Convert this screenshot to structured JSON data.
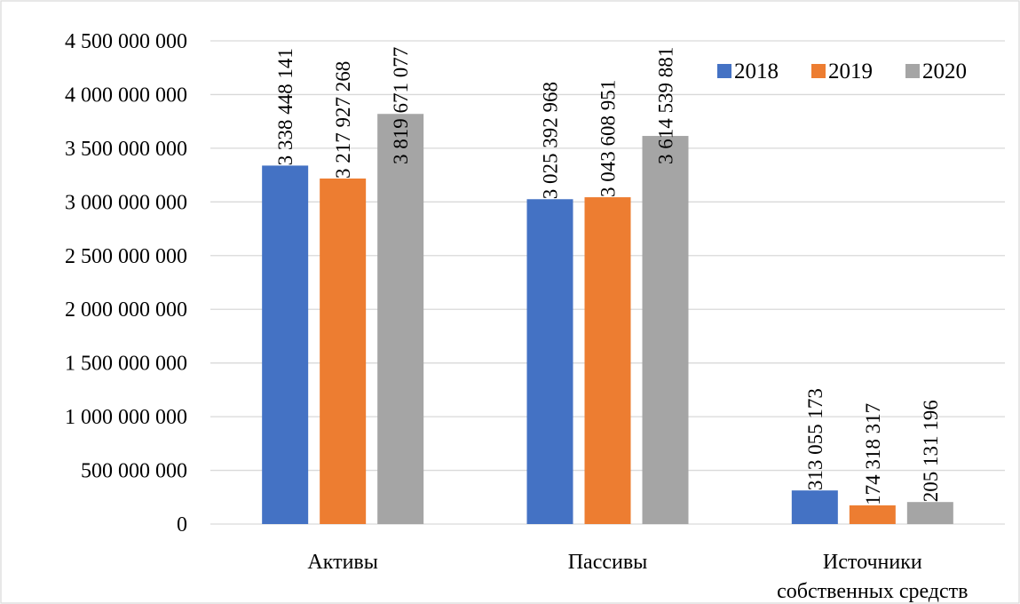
{
  "chart_data": {
    "type": "bar",
    "categories": [
      "Активы",
      "Пассивы",
      "Источники собственных средств"
    ],
    "category_lines": [
      [
        "Активы"
      ],
      [
        "Пассивы"
      ],
      [
        "Источники",
        "собственных средств"
      ]
    ],
    "series": [
      {
        "name": "2018",
        "color": "#4472c4",
        "values": [
          3338448141,
          3025392968,
          313055173
        ],
        "labels": [
          "3 338 448 141",
          "3 025 392 968",
          "313 055 173"
        ]
      },
      {
        "name": "2019",
        "color": "#ed7d31",
        "values": [
          3217927268,
          3043608951,
          174318317
        ],
        "labels": [
          "3 217 927 268",
          "3 043 608 951",
          "174 318 317"
        ]
      },
      {
        "name": "2020",
        "color": "#a5a5a5",
        "values": [
          3819671077,
          3614539881,
          205131196
        ],
        "labels": [
          "3 819 671 077",
          "3 614 539 881",
          "205 131 196"
        ]
      }
    ],
    "ylim": [
      0,
      4500000000
    ],
    "y_ticks": [
      0,
      500000000,
      1000000000,
      1500000000,
      2000000000,
      2500000000,
      3000000000,
      3500000000,
      4000000000,
      4500000000
    ],
    "y_tick_labels": [
      "0",
      "500 000 000",
      "1 000 000 000",
      "1 500 000 000",
      "2 000 000 000",
      "2 500 000 000",
      "3 000 000 000",
      "3 500 000 000",
      "4 000 000 000",
      "4 500 000 000"
    ],
    "grid": true,
    "legend_position": "top-right"
  }
}
